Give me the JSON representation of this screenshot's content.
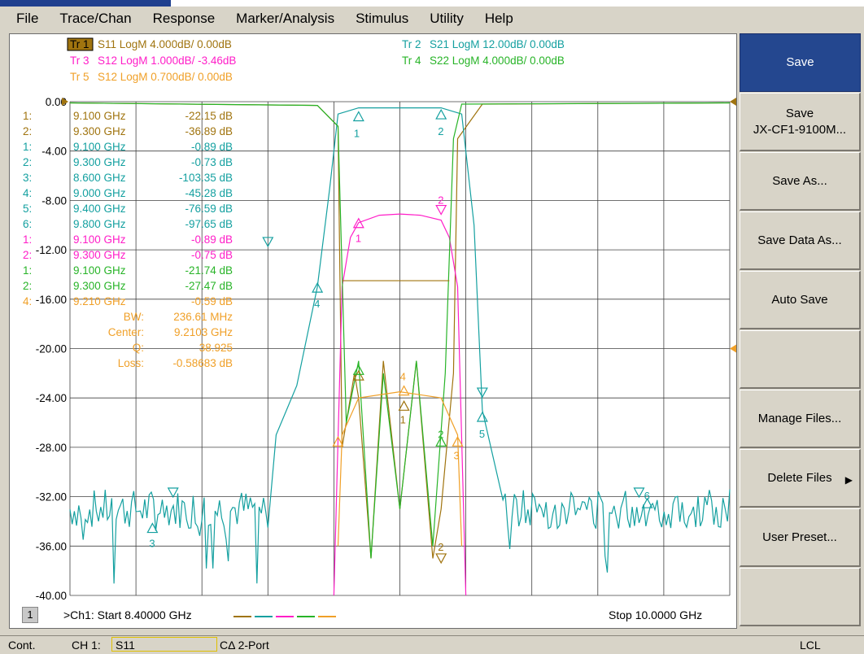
{
  "menu": [
    "File",
    "Trace/Chan",
    "Response",
    "Marker/Analysis",
    "Stimulus",
    "Utility",
    "Help"
  ],
  "traces": [
    {
      "id": "tr1",
      "label": "Tr 1",
      "text": "S11 LogM 4.000dB/  0.00dB",
      "color": "#a0740f",
      "active": true
    },
    {
      "id": "tr2",
      "label": "Tr 2",
      "text": "S21 LogM 12.00dB/  0.00dB",
      "color": "#14a0a0",
      "active": false
    },
    {
      "id": "tr3",
      "label": "Tr 3",
      "text": "S12 LogM 1.000dB/  -3.46dB",
      "color": "#ff1ec8",
      "active": false
    },
    {
      "id": "tr4",
      "label": "Tr 4",
      "text": "S22 LogM 4.000dB/  0.00dB",
      "color": "#28b428",
      "active": false
    },
    {
      "id": "tr5",
      "label": "Tr 5",
      "text": "S12 LogM 0.700dB/  0.00dB",
      "color": "#f0a028",
      "active": false
    }
  ],
  "yaxis": [
    "0.00",
    "-4.00",
    "-8.00",
    "-12.00",
    "-16.00",
    "-20.00",
    "-24.00",
    "-28.00",
    "-32.00",
    "-36.00",
    "-40.00"
  ],
  "markers": [
    {
      "id": "1:",
      "freq": "9.100 GHz",
      "val": "-22.15 dB",
      "color": "#a0740f"
    },
    {
      "id": "2:",
      "freq": "9.300 GHz",
      "val": "-36.89 dB",
      "color": "#a0740f"
    },
    {
      "id": "1:",
      "freq": "9.100 GHz",
      "val": "-0.89 dB",
      "color": "#14a0a0"
    },
    {
      "id": "2:",
      "freq": "9.300 GHz",
      "val": "-0.73 dB",
      "color": "#14a0a0"
    },
    {
      "id": "3:",
      "freq": "8.600 GHz",
      "val": "-103.35 dB",
      "color": "#14a0a0"
    },
    {
      "id": "4:",
      "freq": "9.000 GHz",
      "val": "-45.28 dB",
      "color": "#14a0a0"
    },
    {
      "id": "5:",
      "freq": "9.400 GHz",
      "val": "-76.59 dB",
      "color": "#14a0a0"
    },
    {
      "id": "6:",
      "freq": "9.800 GHz",
      "val": "-97.65 dB",
      "color": "#14a0a0"
    },
    {
      "id": "1:",
      "freq": "9.100 GHz",
      "val": "-0.89 dB",
      "color": "#ff1ec8"
    },
    {
      "id": "2:",
      "freq": "9.300 GHz",
      "val": "-0.75 dB",
      "color": "#ff1ec8"
    },
    {
      "id": "1:",
      "freq": "9.100 GHz",
      "val": "-21.74 dB",
      "color": "#28b428"
    },
    {
      "id": "2:",
      "freq": "9.300 GHz",
      "val": "-27.47 dB",
      "color": "#28b428"
    },
    {
      "id": "4:",
      "freq": "9.210 GHz",
      "val": "-0.59 dB",
      "color": "#f0a028"
    }
  ],
  "bandwidth": [
    {
      "label": "BW:",
      "val": "236.61 MHz"
    },
    {
      "label": "Center:",
      "val": "9.2103 GHz"
    },
    {
      "label": "Q:",
      "val": "38.925"
    },
    {
      "label": "Loss:",
      "val": "-0.58683 dB"
    }
  ],
  "channel": {
    "num": "1",
    "start": ">Ch1: Start  8.40000 GHz",
    "stop": "Stop  10.0000 GHz"
  },
  "softkeys": [
    {
      "label": "Save",
      "sub": "",
      "active": true,
      "arrow": false
    },
    {
      "label": "Save",
      "sub": "JX-CF1-9100M...",
      "active": false,
      "arrow": false
    },
    {
      "label": "Save As...",
      "sub": "",
      "active": false,
      "arrow": false
    },
    {
      "label": "Save Data As...",
      "sub": "",
      "active": false,
      "arrow": false
    },
    {
      "label": "Auto Save",
      "sub": "",
      "active": false,
      "arrow": false
    },
    {
      "label": "",
      "sub": "",
      "active": false,
      "arrow": false
    },
    {
      "label": "Manage Files...",
      "sub": "",
      "active": false,
      "arrow": false
    },
    {
      "label": "Delete Files",
      "sub": "",
      "active": false,
      "arrow": true
    },
    {
      "label": "User Preset...",
      "sub": "",
      "active": false,
      "arrow": false
    },
    {
      "label": "",
      "sub": "",
      "active": false,
      "arrow": false
    }
  ],
  "status": {
    "mode": "Cont.",
    "ch": "CH 1:",
    "param": "S11",
    "port": "CΔ 2-Port",
    "remote": "LCL"
  },
  "chart_data": {
    "type": "line",
    "title": "",
    "xlabel": "",
    "ylabel": "",
    "xlim": [
      8.4,
      10.0
    ],
    "ylim": [
      -40,
      0
    ],
    "grid": true,
    "series": [
      {
        "name": "S11",
        "x": [
          8.4,
          9.0,
          9.05,
          9.06,
          9.09,
          9.1,
          9.13,
          9.16,
          9.2,
          9.24,
          9.28,
          9.3,
          9.33,
          9.34,
          9.4,
          10.0
        ],
        "values": [
          -0.1,
          -0.3,
          -2,
          -28,
          -22,
          -24,
          -37,
          -21,
          -33,
          -21,
          -37,
          -33,
          -22,
          -3,
          -0.2,
          -0.1
        ]
      },
      {
        "name": "S21",
        "x": [
          8.4,
          8.5,
          8.6,
          8.7,
          8.8,
          8.9,
          8.95,
          9.0,
          9.03,
          9.05,
          9.1,
          9.2,
          9.3,
          9.35,
          9.38,
          9.4,
          9.45,
          9.5,
          9.6,
          9.8,
          10.0
        ],
        "values": [
          -33,
          -34,
          -35,
          -34,
          -31,
          -27,
          -23,
          -15,
          -7,
          -1,
          -0.5,
          -0.5,
          -0.5,
          -1,
          -10,
          -25,
          -29,
          -33,
          -33,
          -33,
          -33
        ]
      },
      {
        "name": "S12",
        "x": [
          9.04,
          9.06,
          9.08,
          9.1,
          9.15,
          9.2,
          9.25,
          9.3,
          9.32,
          9.34,
          9.36
        ],
        "values": [
          -40,
          -15,
          -11,
          -9.8,
          -9.2,
          -9.1,
          -9.2,
          -9.6,
          -11,
          -15,
          -40
        ]
      },
      {
        "name": "S22",
        "x": [
          8.4,
          9.0,
          9.05,
          9.07,
          9.1,
          9.13,
          9.16,
          9.2,
          9.24,
          9.28,
          9.31,
          9.33,
          9.35,
          10.0
        ],
        "values": [
          -0.1,
          -0.3,
          -2,
          -26,
          -21,
          -37,
          -22,
          -33,
          -21,
          -36,
          -22,
          -3,
          -0.2,
          -0.1
        ]
      },
      {
        "name": "S12",
        "x": [
          9.05,
          9.06,
          9.1,
          9.2,
          9.3,
          9.34,
          9.35
        ],
        "values": [
          -36,
          -27,
          -24,
          -23.5,
          -24,
          -27,
          -36
        ]
      }
    ]
  }
}
